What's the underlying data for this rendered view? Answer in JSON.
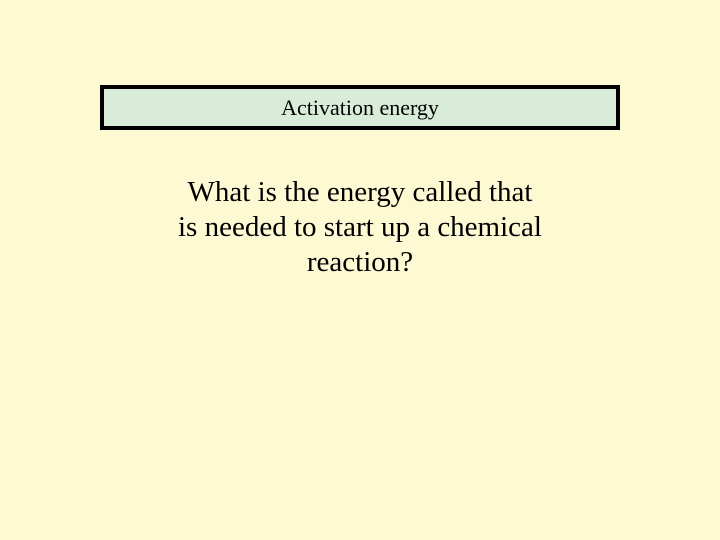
{
  "slide": {
    "background_color": "#fdfad3",
    "answer": {
      "text": "Activation energy",
      "background_color": "#d9ecd9",
      "border_color": "#000000",
      "border_width": 4,
      "fontsize": 22,
      "font_family": "Times New Roman"
    },
    "question": {
      "text": "What is the energy called that is needed to start up a chemical reaction?",
      "fontsize": 29,
      "font_family": "Times New Roman",
      "color": "#000000"
    }
  }
}
